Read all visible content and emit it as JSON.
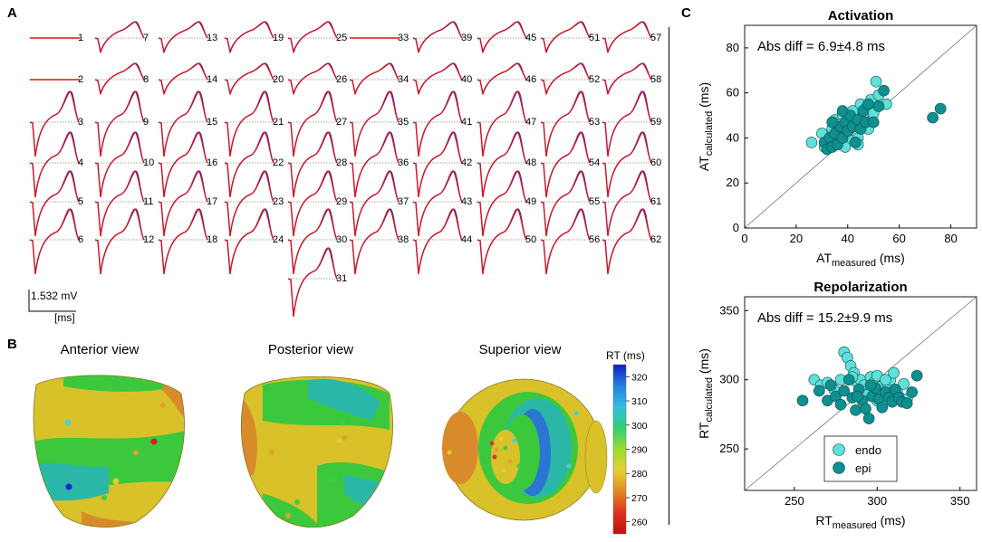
{
  "panels": {
    "a": "A",
    "b": "B",
    "c": "C"
  },
  "panel_a": {
    "lead_numbers": [
      "1",
      "2",
      "3",
      "4",
      "5",
      "6",
      "7",
      "8",
      "9",
      "10",
      "11",
      "12",
      "13",
      "14",
      "15",
      "16",
      "17",
      "18",
      "19",
      "20",
      "21",
      "22",
      "23",
      "24",
      "25",
      "26",
      "27",
      "28",
      "29",
      "30",
      "31",
      "33",
      "34",
      "35",
      "36",
      "37",
      "38",
      "39",
      "40",
      "41",
      "42",
      "43",
      "44",
      "45",
      "46",
      "47",
      "48",
      "49",
      "50",
      "51",
      "52",
      "53",
      "54",
      "55",
      "56",
      "57",
      "58",
      "59",
      "60",
      "61",
      "62"
    ],
    "flat_leads": [
      "1",
      "2",
      "33"
    ],
    "scale_bar_voltage": "1.532 mV",
    "scale_bar_time": "[ms]",
    "line_colors": {
      "measured": "#2233dd",
      "calculated": "#e01010",
      "baseline": "#888888"
    }
  },
  "panel_b": {
    "views": [
      "Anterior view",
      "Posterior view",
      "Superior view"
    ],
    "colorbar_title": "RT (ms)",
    "colorbar_ticks": [
      "320",
      "310",
      "300",
      "290",
      "280",
      "270",
      "260"
    ]
  },
  "chart_data": [
    {
      "type": "scatter",
      "title": "Activation",
      "annotation": "Abs diff = 6.9±4.8 ms",
      "xlabel": {
        "base": "AT",
        "sub": "measured",
        "unit": "(ms)"
      },
      "ylabel": {
        "base": "AT",
        "sub": "calculated",
        "unit": "(ms)"
      },
      "xlim": [
        0,
        90
      ],
      "ylim": [
        0,
        90
      ],
      "xticks": [
        "0",
        "20",
        "40",
        "60",
        "80"
      ],
      "yticks": [
        "0",
        "20",
        "40",
        "60",
        "80"
      ],
      "identity_line": true,
      "series": [
        {
          "key": "endo",
          "color": "#5fe0d8",
          "points": [
            [
              26,
              38
            ],
            [
              30,
              42
            ],
            [
              31,
              36
            ],
            [
              33,
              40
            ],
            [
              34,
              44
            ],
            [
              35,
              48
            ],
            [
              36,
              38
            ],
            [
              37,
              46
            ],
            [
              38,
              50
            ],
            [
              39,
              41
            ],
            [
              40,
              44
            ],
            [
              41,
              39
            ],
            [
              42,
              52
            ],
            [
              43,
              47
            ],
            [
              44,
              40
            ],
            [
              45,
              55
            ],
            [
              46,
              50
            ],
            [
              47,
              53
            ],
            [
              48,
              44
            ],
            [
              49,
              57
            ],
            [
              50,
              51
            ],
            [
              51,
              65
            ],
            [
              52,
              59
            ],
            [
              55,
              55
            ],
            [
              44,
              37
            ],
            [
              39,
              36
            ],
            [
              36,
              43
            ]
          ]
        },
        {
          "key": "epi",
          "color": "#0f8f8f",
          "points": [
            [
              31,
              38
            ],
            [
              32,
              35
            ],
            [
              33,
              40
            ],
            [
              34,
              36
            ],
            [
              35,
              42
            ],
            [
              36,
              37
            ],
            [
              37,
              45
            ],
            [
              38,
              40
            ],
            [
              39,
              47
            ],
            [
              40,
              43
            ],
            [
              41,
              50
            ],
            [
              42,
              45
            ],
            [
              43,
              38
            ],
            [
              44,
              48
            ],
            [
              45,
              44
            ],
            [
              46,
              52
            ],
            [
              47,
              47
            ],
            [
              48,
              55
            ],
            [
              50,
              47
            ],
            [
              52,
              54
            ],
            [
              54,
              61
            ],
            [
              73,
              49
            ],
            [
              76,
              53
            ],
            [
              38,
              52
            ],
            [
              34,
              47
            ]
          ]
        }
      ]
    },
    {
      "type": "scatter",
      "title": "Repolarization",
      "annotation": "Abs diff = 15.2±9.9 ms",
      "xlabel": {
        "base": "RT",
        "sub": "measured",
        "unit": "(ms)"
      },
      "ylabel": {
        "base": "RT",
        "sub": "calculated",
        "unit": "(ms)"
      },
      "xlim": [
        220,
        360
      ],
      "ylim": [
        220,
        360
      ],
      "xticks": [
        "250",
        "300",
        "350"
      ],
      "yticks": [
        "250",
        "300",
        "350"
      ],
      "identity_line": true,
      "legend": {
        "position": "bottom-center",
        "entries": [
          "endo",
          "epi"
        ]
      },
      "series": [
        {
          "key": "endo",
          "color": "#5fe0d8",
          "points": [
            [
              262,
              300
            ],
            [
              266,
              296
            ],
            [
              270,
              298
            ],
            [
              274,
              293
            ],
            [
              278,
              300
            ],
            [
              280,
              320
            ],
            [
              282,
              316
            ],
            [
              284,
              310
            ],
            [
              286,
              305
            ],
            [
              288,
              298
            ],
            [
              290,
              300
            ],
            [
              292,
              296
            ],
            [
              294,
              289
            ],
            [
              296,
              302
            ],
            [
              298,
              298
            ],
            [
              300,
              303
            ],
            [
              302,
              295
            ],
            [
              304,
              290
            ],
            [
              306,
              298
            ],
            [
              308,
              300
            ],
            [
              310,
              305
            ],
            [
              312,
              292
            ],
            [
              314,
              287
            ],
            [
              316,
              297
            ],
            [
              318,
              286
            ],
            [
              300,
              285
            ],
            [
              305,
              300
            ],
            [
              285,
              302
            ]
          ]
        },
        {
          "key": "epi",
          "color": "#0f8f8f",
          "points": [
            [
              255,
              285
            ],
            [
              265,
              292
            ],
            [
              270,
              285
            ],
            [
              272,
              296
            ],
            [
              275,
              288
            ],
            [
              278,
              282
            ],
            [
              280,
              292
            ],
            [
              283,
              300
            ],
            [
              285,
              287
            ],
            [
              287,
              278
            ],
            [
              289,
              293
            ],
            [
              291,
              285
            ],
            [
              293,
              279
            ],
            [
              295,
              272
            ],
            [
              297,
              288
            ],
            [
              299,
              294
            ],
            [
              301,
              286
            ],
            [
              303,
              280
            ],
            [
              305,
              291
            ],
            [
              307,
              287
            ],
            [
              309,
              284
            ],
            [
              311,
              293
            ],
            [
              313,
              287
            ],
            [
              315,
              284
            ],
            [
              318,
              283
            ],
            [
              321,
              291
            ],
            [
              324,
              303
            ],
            [
              296,
              296
            ],
            [
              288,
              288
            ]
          ]
        }
      ]
    }
  ]
}
